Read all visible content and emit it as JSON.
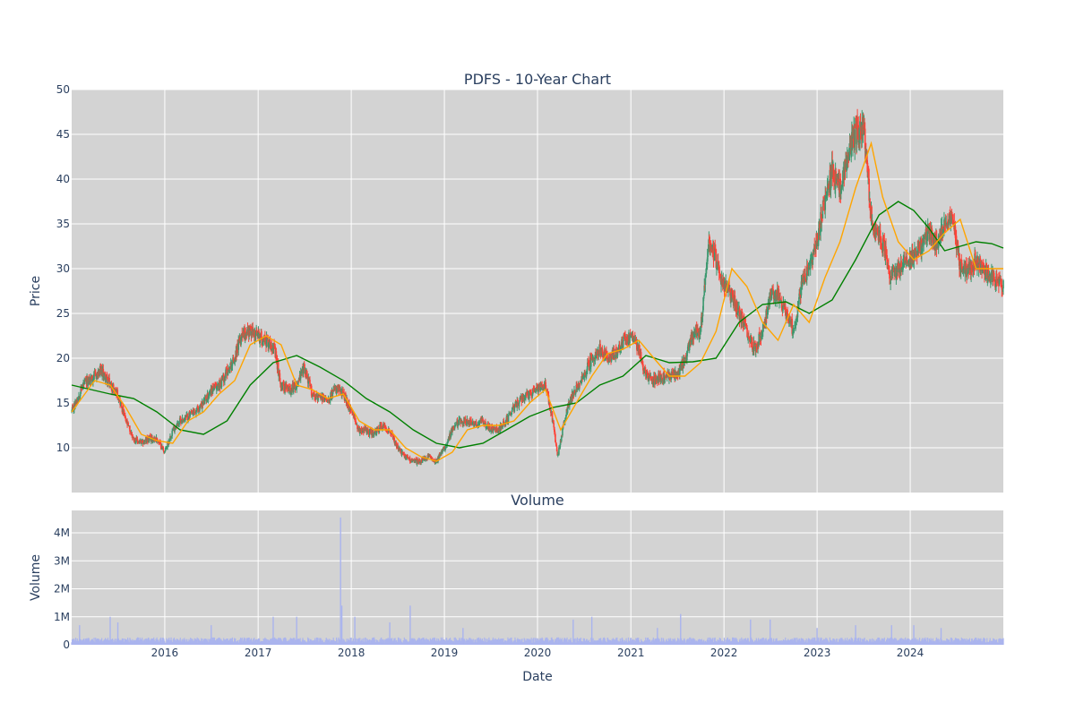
{
  "chart_data": [
    {
      "type": "candlestick",
      "title": "PDFS - 10-Year Chart",
      "xlabel": "",
      "ylabel": "Price",
      "xlim": [
        "2015-01-01",
        "2024-12-31"
      ],
      "ylim": [
        5,
        50
      ],
      "y_ticks": [
        10,
        15,
        20,
        25,
        30,
        35,
        40,
        45,
        50
      ],
      "x_ticks": [
        "2016",
        "2017",
        "2018",
        "2019",
        "2020",
        "2021",
        "2022",
        "2023",
        "2024"
      ],
      "grid": true,
      "legend": "none",
      "colors": {
        "up": "#3d9970",
        "down": "#ff4136",
        "ma_short": "#ffa500",
        "ma_long": "#008000",
        "plot_bg": "#d3d3d3"
      },
      "close_series": {
        "x": [
          "2015-01-01",
          "2015-02-15",
          "2015-04-01",
          "2015-05-01",
          "2015-06-01",
          "2015-07-01",
          "2015-08-01",
          "2015-09-01",
          "2015-10-01",
          "2015-11-01",
          "2015-12-01",
          "2016-01-01",
          "2016-02-01",
          "2016-03-01",
          "2016-04-01",
          "2016-05-01",
          "2016-06-01",
          "2016-07-01",
          "2016-08-01",
          "2016-09-01",
          "2016-10-01",
          "2016-11-01",
          "2016-12-01",
          "2017-01-01",
          "2017-02-01",
          "2017-03-01",
          "2017-04-01",
          "2017-05-01",
          "2017-06-01",
          "2017-07-01",
          "2017-08-01",
          "2017-09-01",
          "2017-10-01",
          "2017-11-01",
          "2017-12-01",
          "2018-01-01",
          "2018-02-01",
          "2018-03-01",
          "2018-04-01",
          "2018-05-01",
          "2018-06-01",
          "2018-07-01",
          "2018-08-01",
          "2018-09-01",
          "2018-10-01",
          "2018-11-01",
          "2018-12-01",
          "2019-01-01",
          "2019-02-01",
          "2019-03-01",
          "2019-04-01",
          "2019-05-01",
          "2019-06-01",
          "2019-07-01",
          "2019-08-01",
          "2019-09-01",
          "2019-10-01",
          "2019-11-01",
          "2019-12-01",
          "2020-01-01",
          "2020-02-01",
          "2020-03-01",
          "2020-03-20",
          "2020-04-15",
          "2020-05-15",
          "2020-06-15",
          "2020-07-15",
          "2020-08-01",
          "2020-09-01",
          "2020-10-01",
          "2020-11-01",
          "2020-12-01",
          "2021-01-01",
          "2021-02-01",
          "2021-03-01",
          "2021-04-01",
          "2021-05-01",
          "2021-06-01",
          "2021-07-01",
          "2021-08-01",
          "2021-09-01",
          "2021-10-01",
          "2021-11-01",
          "2021-12-01",
          "2022-01-01",
          "2022-02-01",
          "2022-03-01",
          "2022-04-01",
          "2022-05-01",
          "2022-06-01",
          "2022-07-01",
          "2022-08-01",
          "2022-09-01",
          "2022-10-01",
          "2022-11-01",
          "2022-12-01",
          "2023-01-01",
          "2023-02-01",
          "2023-03-01",
          "2023-04-01",
          "2023-05-01",
          "2023-06-01",
          "2023-07-01",
          "2023-08-01",
          "2023-08-20",
          "2023-09-15",
          "2023-10-15",
          "2023-11-15",
          "2023-12-15",
          "2024-01-15",
          "2024-02-15",
          "2024-03-15",
          "2024-04-15",
          "2024-05-15",
          "2024-06-15",
          "2024-07-15",
          "2024-08-15",
          "2024-09-15",
          "2024-10-15",
          "2024-11-15",
          "2024-12-31"
        ],
        "y": [
          14,
          17,
          18,
          18.5,
          17,
          16,
          13,
          11,
          10.5,
          11,
          11,
          9.5,
          12,
          13,
          13.5,
          14,
          15,
          16.5,
          17,
          18.5,
          20,
          23,
          23,
          22.5,
          22,
          21.5,
          17,
          16.5,
          17,
          19,
          16,
          15.5,
          15.5,
          16.5,
          16,
          14,
          12,
          12,
          11.5,
          12.5,
          12,
          10,
          9,
          8.5,
          8.5,
          9,
          8.5,
          10,
          12,
          13,
          13,
          12.5,
          13,
          12,
          12,
          13,
          14.5,
          15.5,
          16,
          16.5,
          17,
          13,
          9,
          13,
          16,
          17,
          19,
          20,
          21,
          20,
          20.5,
          22,
          22.5,
          21,
          18,
          17.5,
          18,
          18,
          18,
          20,
          22.5,
          23,
          33,
          31,
          28,
          27,
          25,
          23,
          21,
          23,
          27,
          27,
          25,
          23,
          28,
          30,
          33,
          38,
          41,
          39,
          43,
          45,
          46,
          36,
          34,
          33,
          29,
          30,
          31,
          31.5,
          33,
          34,
          33,
          35,
          36,
          30,
          30,
          31,
          30,
          29,
          28
        ]
      },
      "ma_short": {
        "x": [
          "2015-01-01",
          "2015-04-01",
          "2015-06-01",
          "2015-08-01",
          "2015-10-01",
          "2015-12-01",
          "2016-02-01",
          "2016-04-01",
          "2016-06-01",
          "2016-08-01",
          "2016-10-01",
          "2016-12-01",
          "2017-02-01",
          "2017-04-01",
          "2017-06-01",
          "2017-08-01",
          "2017-10-01",
          "2017-12-01",
          "2018-02-01",
          "2018-04-01",
          "2018-06-01",
          "2018-08-01",
          "2018-10-01",
          "2018-12-01",
          "2019-02-01",
          "2019-04-01",
          "2019-06-01",
          "2019-08-01",
          "2019-10-01",
          "2019-12-01",
          "2020-02-01",
          "2020-04-01",
          "2020-06-01",
          "2020-08-01",
          "2020-10-01",
          "2020-12-01",
          "2021-02-01",
          "2021-04-01",
          "2021-06-01",
          "2021-08-01",
          "2021-10-01",
          "2021-12-01",
          "2022-02-01",
          "2022-04-01",
          "2022-06-01",
          "2022-08-01",
          "2022-10-01",
          "2022-12-01",
          "2023-02-01",
          "2023-04-01",
          "2023-06-01",
          "2023-08-01",
          "2023-09-15",
          "2023-11-15",
          "2024-01-15",
          "2024-03-15",
          "2024-05-15",
          "2024-07-15",
          "2024-09-15",
          "2024-11-15",
          "2024-12-31"
        ],
        "y": [
          14,
          17.5,
          17,
          14.5,
          11.5,
          10.8,
          10.5,
          13,
          14,
          16,
          17.5,
          21.5,
          22.5,
          21.5,
          17,
          16.5,
          15.5,
          16,
          13,
          12,
          12,
          10,
          9,
          8.5,
          9.5,
          12,
          12.5,
          12.5,
          13,
          15,
          16.5,
          12,
          15,
          18,
          20.5,
          21,
          22,
          20,
          18,
          18,
          19.5,
          23,
          30,
          28,
          24,
          22,
          26,
          24,
          29,
          33,
          39,
          44,
          38,
          33,
          31,
          32,
          34,
          35.5,
          30,
          30,
          30
        ]
      },
      "ma_long": {
        "x": [
          "2015-01-01",
          "2015-06-01",
          "2015-09-01",
          "2015-12-01",
          "2016-03-01",
          "2016-06-01",
          "2016-09-01",
          "2016-12-01",
          "2017-03-01",
          "2017-06-01",
          "2017-09-01",
          "2017-12-01",
          "2018-03-01",
          "2018-06-01",
          "2018-09-01",
          "2018-12-01",
          "2019-03-01",
          "2019-06-01",
          "2019-09-01",
          "2019-12-01",
          "2020-03-01",
          "2020-06-01",
          "2020-09-01",
          "2020-12-01",
          "2021-03-01",
          "2021-06-01",
          "2021-09-01",
          "2021-12-01",
          "2022-03-01",
          "2022-06-01",
          "2022-09-01",
          "2022-12-01",
          "2023-03-01",
          "2023-06-01",
          "2023-09-01",
          "2023-11-15",
          "2024-01-15",
          "2024-03-15",
          "2024-05-15",
          "2024-07-15",
          "2024-09-15",
          "2024-11-15",
          "2024-12-31"
        ],
        "y": [
          17,
          16,
          15.5,
          14,
          12,
          11.5,
          13,
          17,
          19.5,
          20.3,
          19,
          17.5,
          15.5,
          14,
          12,
          10.5,
          10,
          10.5,
          12,
          13.5,
          14.5,
          15,
          17,
          18,
          20.3,
          19.5,
          19.6,
          20,
          24,
          26,
          26.3,
          25,
          26.5,
          31,
          36,
          37.5,
          36.5,
          34.5,
          32,
          32.5,
          33,
          32.8,
          32.3
        ]
      }
    },
    {
      "type": "bar",
      "title": "Volume",
      "xlabel": "Date",
      "ylabel": "Volume",
      "xlim": [
        "2015-01-01",
        "2024-12-31"
      ],
      "ylim": [
        0,
        4800000
      ],
      "y_ticks": [
        0,
        1000000,
        2000000,
        3000000,
        4000000
      ],
      "y_tick_labels": [
        "0",
        "1M",
        "2M",
        "3M",
        "4M"
      ],
      "x_ticks": [
        "2016",
        "2017",
        "2018",
        "2019",
        "2020",
        "2021",
        "2022",
        "2023",
        "2024"
      ],
      "grid": true,
      "legend": "none",
      "colors": {
        "bar": "#aab4ee",
        "plot_bg": "#d3d3d3"
      },
      "typical_volume": 220000,
      "spikes": {
        "x": [
          "2015-02-01",
          "2015-06-01",
          "2015-07-01",
          "2016-07-01",
          "2017-03-01",
          "2017-06-01",
          "2017-11-20",
          "2017-11-25",
          "2018-01-15",
          "2018-08-20",
          "2018-06-01",
          "2019-03-15",
          "2020-05-20",
          "2020-08-01",
          "2021-04-15",
          "2021-07-15",
          "2022-04-15",
          "2022-07-01",
          "2023-01-01",
          "2023-06-01",
          "2023-10-20",
          "2024-01-15",
          "2024-05-01"
        ],
        "values": [
          700000,
          1000000,
          800000,
          700000,
          1000000,
          1000000,
          4550000,
          1400000,
          1000000,
          1400000,
          800000,
          600000,
          900000,
          1000000,
          600000,
          1100000,
          900000,
          900000,
          600000,
          700000,
          700000,
          700000,
          600000
        ]
      }
    }
  ]
}
